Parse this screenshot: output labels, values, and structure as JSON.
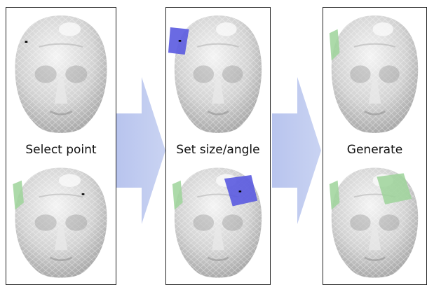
{
  "steps": [
    {
      "label": "Select point"
    },
    {
      "label": "Set size/angle"
    },
    {
      "label": "Generate"
    }
  ],
  "colors": {
    "panel_border": "#222222",
    "arrow": "#aab8e6",
    "selection_patch": "#5a5ae0",
    "generated_patch": "#9dd39a",
    "selected_point": "#000000"
  },
  "icons": {
    "flow_arrow": "right-arrow-icon"
  }
}
